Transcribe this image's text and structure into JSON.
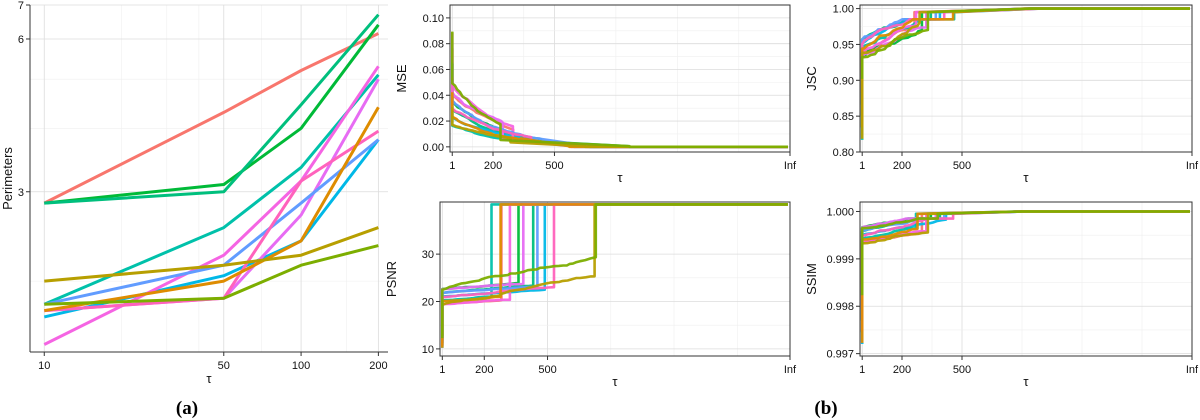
{
  "labels": {
    "a": "(a)",
    "b": "(b)"
  },
  "chart_data": [
    {
      "id": "perimeters",
      "type": "line",
      "panel": "(a)",
      "xlabel": "τ",
      "ylabel": "Perimeters",
      "x": [
        10,
        50,
        100,
        200
      ],
      "xticks": [
        "10",
        "50",
        "100",
        "200"
      ],
      "ylim": [
        1.45,
        7.0
      ],
      "yticks": [
        3,
        6,
        7
      ],
      "log_y": true,
      "grid": true,
      "colors": [
        "#F8766D",
        "#00BA38",
        "#00BF7D",
        "#00B8E7",
        "#00C1AA",
        "#F564E3",
        "#E76BF3",
        "#619CFF",
        "#FF62BC",
        "#DE8C00",
        "#B79F00",
        "#7CAE00",
        "#C77CFF"
      ],
      "series": [
        {
          "values": [
            2.85,
            4.3,
            5.2,
            6.15
          ]
        },
        {
          "values": [
            2.85,
            3.1,
            4.0,
            6.4
          ]
        },
        {
          "values": [
            2.85,
            3.0,
            4.45,
            6.7
          ]
        },
        {
          "values": [
            1.7,
            2.05,
            2.4,
            3.8
          ]
        },
        {
          "values": [
            1.8,
            2.55,
            3.35,
            5.1
          ]
        },
        {
          "values": [
            1.5,
            2.25,
            3.15,
            5.3
          ]
        },
        {
          "values": [
            1.75,
            1.85,
            2.7,
            5.0
          ]
        },
        {
          "values": [
            1.8,
            2.15,
            2.85,
            3.8
          ]
        },
        {
          "values": [
            1.75,
            1.85,
            3.15,
            3.95
          ]
        },
        {
          "values": [
            1.75,
            2.0,
            2.4,
            4.4
          ]
        },
        {
          "values": [
            2.0,
            2.15,
            2.25,
            2.55
          ]
        },
        {
          "values": [
            1.8,
            1.85,
            2.15,
            2.35
          ]
        }
      ]
    },
    {
      "id": "mse",
      "type": "line",
      "panel": "(b)",
      "xlabel": "τ",
      "ylabel": "MSE",
      "xticks": [
        "1",
        "200",
        "500",
        "Inf"
      ],
      "ylim": [
        -0.004,
        0.11
      ],
      "yticks": [
        "0.00",
        "0.02",
        "0.04",
        "0.06",
        "0.08",
        "0.10"
      ],
      "grid": true
    },
    {
      "id": "jsc",
      "type": "line",
      "panel": "(b)",
      "xlabel": "τ",
      "ylabel": "JSC",
      "xticks": [
        "1",
        "200",
        "500",
        "Inf"
      ],
      "ylim": [
        0.8,
        1.005
      ],
      "yticks": [
        "0.80",
        "0.85",
        "0.90",
        "0.95",
        "1.00"
      ],
      "grid": true
    },
    {
      "id": "psnr",
      "type": "line",
      "panel": "(b)",
      "xlabel": "τ",
      "ylabel": "PSNR",
      "xticks": [
        "1",
        "200",
        "500",
        "Inf"
      ],
      "ylim": [
        8.5,
        41
      ],
      "yticks": [
        "10",
        "20",
        "30"
      ],
      "grid": true
    },
    {
      "id": "ssim",
      "type": "line",
      "panel": "(b)",
      "xlabel": "τ",
      "ylabel": "SSIM",
      "xticks": [
        "1",
        "200",
        "500",
        "Inf"
      ],
      "ylim": [
        0.99695,
        1.0002
      ],
      "yticks": [
        "0.997",
        "0.998",
        "0.999",
        "1.000"
      ],
      "grid": true
    }
  ]
}
